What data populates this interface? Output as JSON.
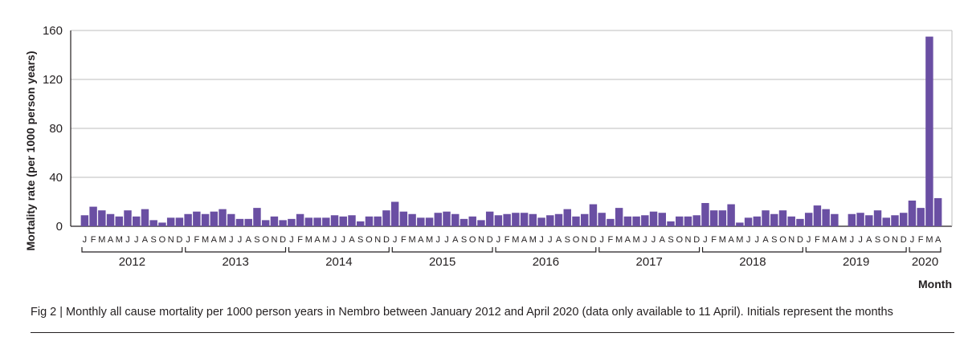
{
  "chart_data": {
    "type": "bar",
    "xlabel": "Month",
    "ylabel": "Mortality rate (per 1000 person years)",
    "ylim": [
      0,
      160
    ],
    "yticks": [
      0,
      40,
      80,
      120,
      160
    ],
    "grid": true,
    "color": "#6a4fa3",
    "years": [
      {
        "label": "2012",
        "months": [
          "J",
          "F",
          "M",
          "A",
          "M",
          "J",
          "J",
          "A",
          "S",
          "O",
          "N",
          "D"
        ],
        "values": [
          9,
          16,
          13,
          10,
          8,
          13,
          8,
          14,
          5,
          3,
          7,
          7
        ]
      },
      {
        "label": "2013",
        "months": [
          "J",
          "F",
          "M",
          "A",
          "M",
          "J",
          "J",
          "A",
          "S",
          "O",
          "N",
          "D"
        ],
        "values": [
          10,
          12,
          10,
          12,
          14,
          10,
          6,
          6,
          15,
          5,
          8,
          5
        ]
      },
      {
        "label": "2014",
        "months": [
          "J",
          "F",
          "M",
          "A",
          "M",
          "J",
          "J",
          "A",
          "S",
          "O",
          "N",
          "D"
        ],
        "values": [
          6,
          10,
          7,
          7,
          7,
          9,
          8,
          9,
          4,
          8,
          8,
          13
        ]
      },
      {
        "label": "2015",
        "months": [
          "J",
          "F",
          "M",
          "A",
          "M",
          "J",
          "J",
          "A",
          "S",
          "O",
          "N",
          "D"
        ],
        "values": [
          20,
          12,
          10,
          7,
          7,
          11,
          12,
          10,
          6,
          8,
          5,
          12
        ]
      },
      {
        "label": "2016",
        "months": [
          "J",
          "F",
          "M",
          "A",
          "M",
          "J",
          "J",
          "A",
          "S",
          "O",
          "N",
          "D"
        ],
        "values": [
          9,
          10,
          11,
          11,
          10,
          7,
          9,
          10,
          14,
          8,
          10,
          18
        ]
      },
      {
        "label": "2017",
        "months": [
          "J",
          "F",
          "M",
          "A",
          "M",
          "J",
          "J",
          "A",
          "S",
          "O",
          "N",
          "D"
        ],
        "values": [
          11,
          6,
          15,
          8,
          8,
          9,
          12,
          11,
          4,
          8,
          8,
          9
        ]
      },
      {
        "label": "2018",
        "months": [
          "J",
          "F",
          "M",
          "A",
          "M",
          "J",
          "J",
          "A",
          "S",
          "O",
          "N",
          "D"
        ],
        "values": [
          19,
          13,
          13,
          18,
          3,
          7,
          8,
          13,
          10,
          13,
          8,
          6
        ]
      },
      {
        "label": "2019",
        "months": [
          "J",
          "F",
          "M",
          "A",
          "M",
          "J",
          "J",
          "A",
          "S",
          "O",
          "N",
          "D"
        ],
        "values": [
          11,
          17,
          14,
          10,
          0,
          10,
          11,
          9,
          13,
          7,
          9,
          11
        ]
      },
      {
        "label": "2020",
        "months": [
          "J",
          "F",
          "M",
          "A"
        ],
        "values": [
          21,
          15,
          155,
          23
        ]
      }
    ]
  },
  "caption": "Fig 2 | Monthly all cause mortality per 1000 person years in Nembro between January 2012 and April 2020 (data only available to 11 April). Initials represent the months"
}
